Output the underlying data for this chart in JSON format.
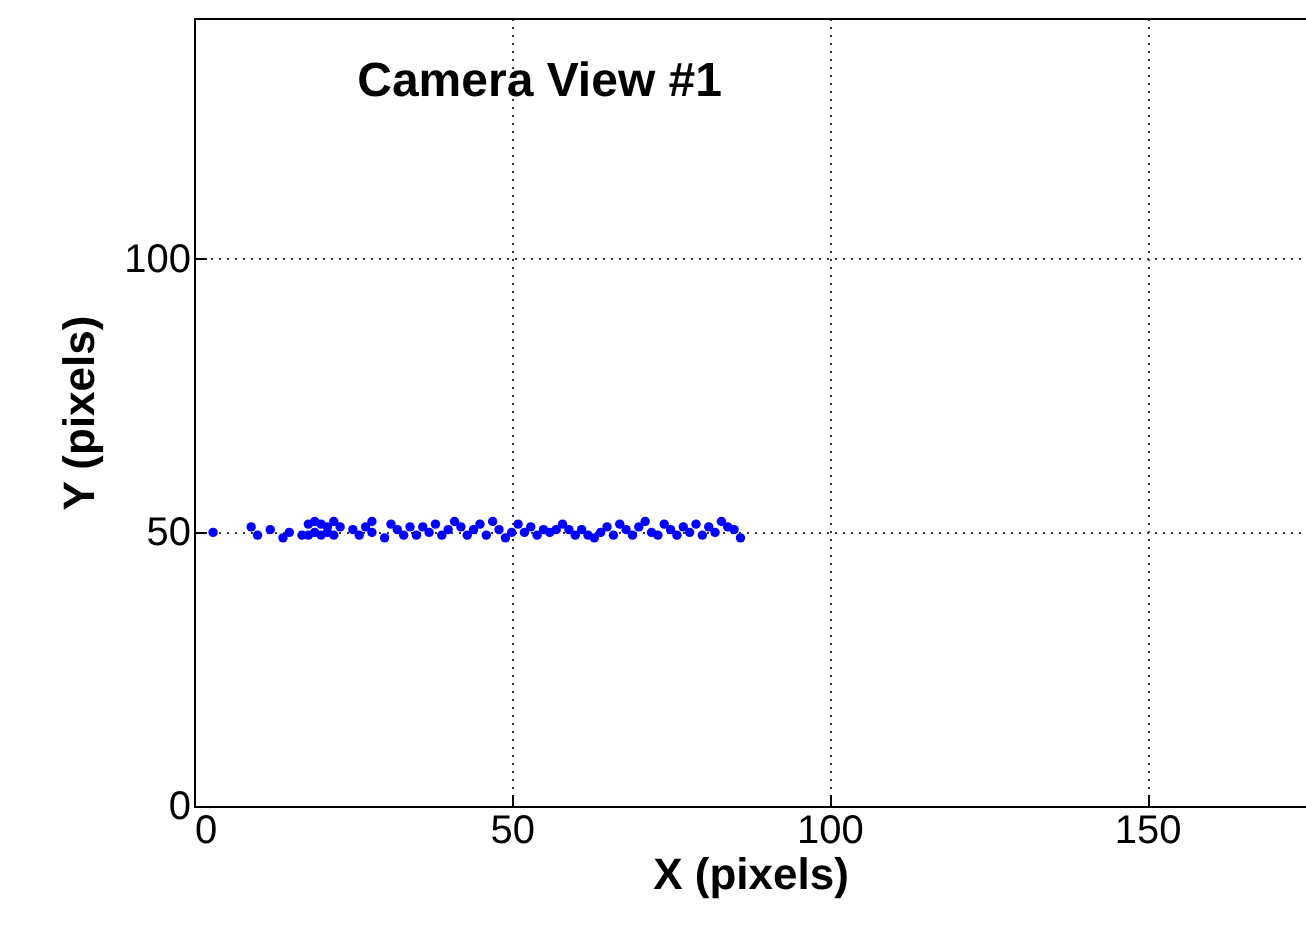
{
  "chart_data": {
    "type": "scatter",
    "title": "Camera View #1",
    "xlabel": "X (pixels)",
    "ylabel": "Y (pixels)",
    "xlim": [
      0,
      175
    ],
    "ylim": [
      0,
      144
    ],
    "xticks": [
      0,
      50,
      100,
      150
    ],
    "yticks": [
      0,
      50,
      100
    ],
    "grid": true,
    "marker": "circle",
    "series": [
      {
        "color": "#0000ff",
        "x": [
          3,
          9,
          10,
          12,
          14,
          15,
          17,
          18,
          18,
          19,
          19,
          20,
          20,
          21,
          21,
          22,
          22,
          23,
          25,
          26,
          27,
          28,
          28,
          30,
          31,
          32,
          33,
          34,
          35,
          36,
          37,
          38,
          39,
          40,
          41,
          42,
          43,
          44,
          45,
          46,
          47,
          48,
          49,
          50,
          51,
          52,
          53,
          54,
          55,
          56,
          57,
          58,
          59,
          60,
          61,
          62,
          63,
          64,
          65,
          66,
          67,
          68,
          69,
          70,
          71,
          72,
          73,
          74,
          75,
          76,
          77,
          78,
          79,
          80,
          81,
          82,
          83,
          84,
          85,
          86
        ],
        "values": [
          50,
          51,
          49.5,
          50.5,
          49,
          50,
          49.5,
          51.5,
          49.5,
          52,
          50,
          51.5,
          49.5,
          51,
          50,
          52,
          49.5,
          51,
          50.5,
          49.5,
          51,
          50,
          52,
          49,
          51.5,
          50.5,
          49.5,
          51,
          49.5,
          51,
          50,
          51.5,
          49.5,
          50.5,
          52,
          51,
          49.5,
          50.5,
          51.5,
          49.5,
          52,
          50.5,
          49,
          50,
          51.5,
          50,
          51,
          49.5,
          50.5,
          50,
          50.5,
          51.5,
          50.5,
          49.5,
          50.5,
          49.5,
          49,
          50,
          51,
          49.5,
          51.5,
          50.5,
          49.5,
          51,
          52,
          50,
          49.5,
          51.5,
          50.5,
          49.5,
          51,
          50,
          51.5,
          49.5,
          51,
          50,
          52,
          51,
          50.5,
          49
        ]
      }
    ]
  }
}
